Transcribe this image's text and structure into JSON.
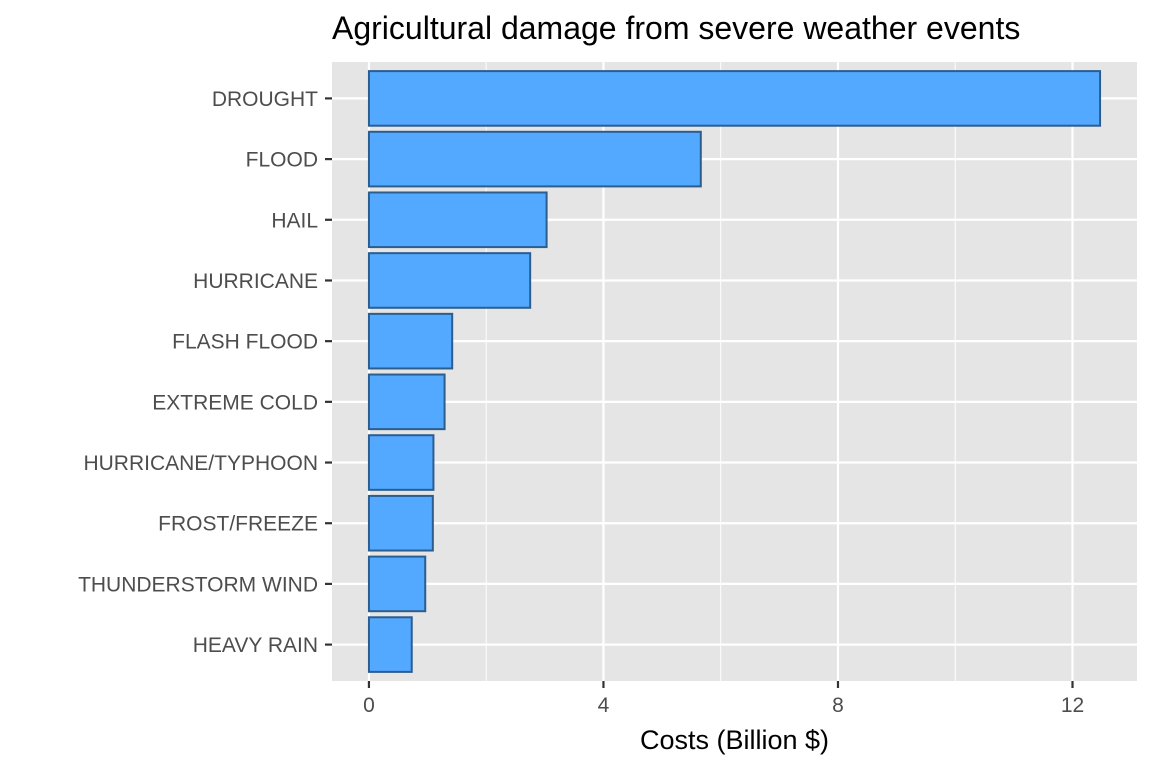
{
  "chart_data": {
    "type": "bar",
    "orientation": "horizontal",
    "title": "Agricultural damage from severe weather events",
    "xlabel": "Costs (Billion $)",
    "ylabel": "",
    "categories": [
      "DROUGHT",
      "FLOOD",
      "HAIL",
      "HURRICANE",
      "FLASH FLOOD",
      "EXTREME COLD",
      "HURRICANE/TYPHOON",
      "FROST/FREEZE",
      "THUNDERSTORM WIND",
      "HEAVY RAIN"
    ],
    "values": [
      12.47,
      5.66,
      3.03,
      2.75,
      1.42,
      1.29,
      1.1,
      1.09,
      0.96,
      0.73
    ],
    "xlim": [
      -0.63,
      13.1
    ],
    "x_ticks": [
      0,
      4,
      8,
      12
    ],
    "x_tick_labels": [
      "0",
      "4",
      "8",
      "12"
    ],
    "grid": true,
    "legend": "none",
    "colors": {
      "bar_fill": "#53a8ff",
      "bar_outline": "#2c5d8f",
      "panel_background": "#e5e5e5",
      "grid": "#ffffff",
      "text": "#4d4d4d"
    }
  }
}
